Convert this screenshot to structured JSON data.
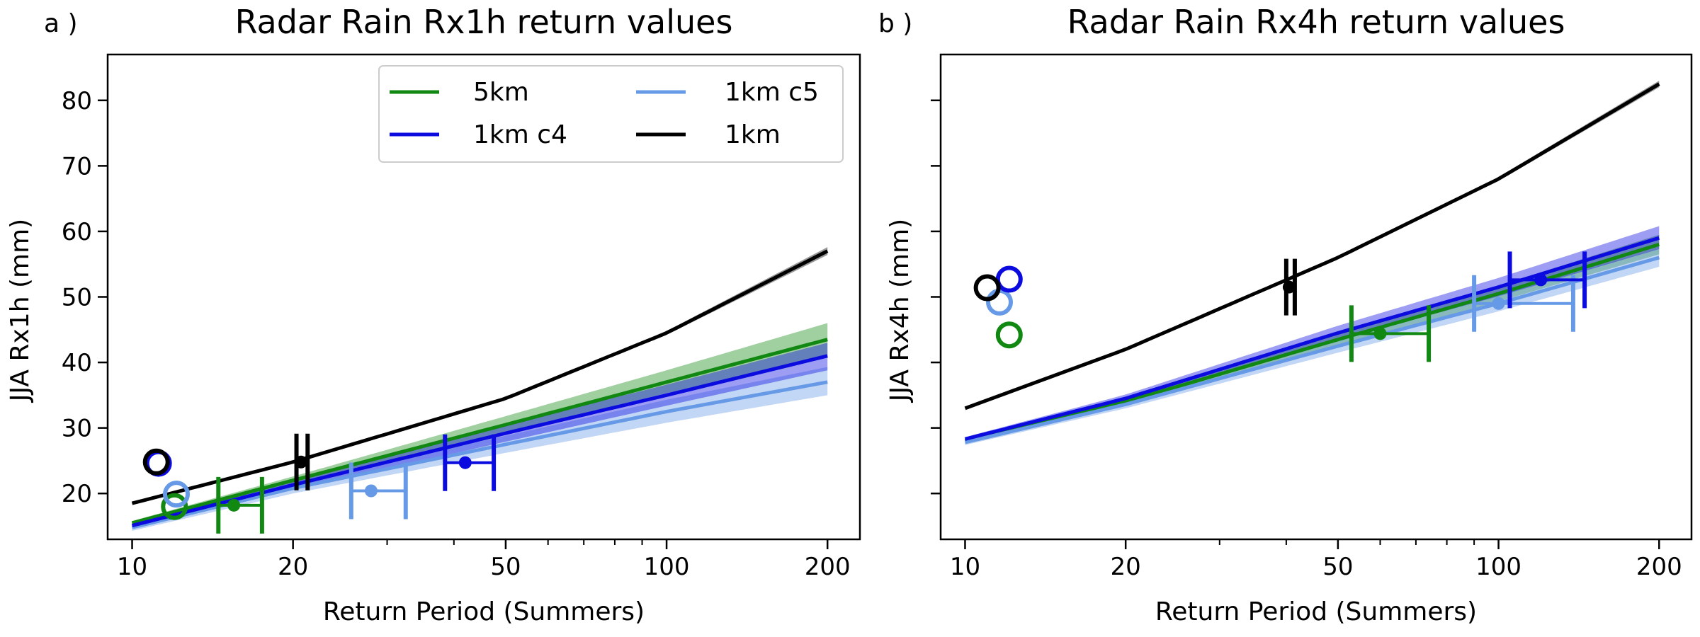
{
  "chart_data": [
    {
      "type": "line",
      "panel_label": "a )",
      "title": "Radar Rain Rx1h  return values",
      "xlabel": "Return Period (Summers)",
      "ylabel": "JJA Rx1h (mm)",
      "x_scale": "log",
      "xlim": [
        9.0,
        230
      ],
      "ylim": [
        13,
        87
      ],
      "x_ticks": [
        10,
        20,
        50,
        100,
        200
      ],
      "x_tick_labels": [
        "10",
        "20",
        "50",
        "100",
        "200"
      ],
      "y_ticks": [
        20,
        30,
        40,
        50,
        60,
        70,
        80
      ],
      "y_tick_labels": [
        "20",
        "30",
        "40",
        "50",
        "60",
        "70",
        "80"
      ],
      "grid": false,
      "legend": {
        "placement": "top-right",
        "entries": [
          {
            "label": "5km",
            "color": "#118811"
          },
          {
            "label": "1km c5",
            "color": "#6699e6"
          },
          {
            "label": "1km c4",
            "color": "#0b0be0"
          },
          {
            "label": "1km",
            "color": "#000000"
          }
        ]
      },
      "series": [
        {
          "name": "5km",
          "color": "#118811",
          "x": [
            10,
            20,
            50,
            100,
            200
          ],
          "y": [
            15.5,
            22.0,
            30.5,
            37.0,
            43.5
          ],
          "band_low": [
            15.2,
            21.4,
            29.3,
            35.3,
            41.0
          ],
          "band_high": [
            15.8,
            22.6,
            31.8,
            38.8,
            46.0
          ],
          "observed": {
            "x": 12.0,
            "y": 18.0
          },
          "return_point": {
            "x": 15.5,
            "y": 18.2,
            "xerr": [
              14.5,
              17.5
            ]
          }
        },
        {
          "name": "1km c5",
          "color": "#6699e6",
          "x": [
            10,
            20,
            50,
            100,
            200
          ],
          "y": [
            14.8,
            20.8,
            27.5,
            32.5,
            37.0
          ],
          "band_low": [
            14.3,
            20.0,
            26.2,
            30.8,
            35.0
          ],
          "band_high": [
            15.3,
            21.6,
            28.8,
            34.3,
            39.3
          ],
          "observed": {
            "x": 12.1,
            "y": 19.9
          },
          "return_point": {
            "x": 28.0,
            "y": 20.4,
            "xerr": [
              25.7,
              32.5
            ]
          }
        },
        {
          "name": "1km c4",
          "color": "#0b0be0",
          "x": [
            10,
            20,
            50,
            100,
            200
          ],
          "y": [
            15.1,
            21.3,
            29.2,
            35.0,
            41.0
          ],
          "band_low": [
            14.7,
            20.6,
            27.9,
            33.4,
            38.8
          ],
          "band_high": [
            15.5,
            22.0,
            30.5,
            36.6,
            43.0
          ],
          "observed": {
            "x": 11.2,
            "y": 24.6
          },
          "return_point": {
            "x": 42.0,
            "y": 24.7,
            "xerr": [
              38.5,
              47.5
            ]
          }
        },
        {
          "name": "1km",
          "color": "#000000",
          "x": [
            10,
            20,
            50,
            100,
            200
          ],
          "y": [
            18.5,
            24.8,
            34.5,
            44.5,
            57.0
          ],
          "band_low": [
            18.4,
            24.7,
            34.3,
            44.2,
            56.4
          ],
          "band_high": [
            18.6,
            24.9,
            34.7,
            44.8,
            57.6
          ],
          "observed": {
            "x": 11.1,
            "y": 24.8
          },
          "return_point": {
            "x": 20.7,
            "y": 24.8,
            "xerr": [
              20.3,
              21.3
            ]
          }
        }
      ]
    },
    {
      "type": "line",
      "panel_label": "b )",
      "title": "Radar Rain Rx4h  return values",
      "xlabel": "Return Period (Summers)",
      "ylabel": "JJA Rx4h (mm)",
      "x_scale": "log",
      "xlim": [
        9.0,
        230
      ],
      "ylim": [
        13,
        87
      ],
      "x_ticks": [
        10,
        20,
        50,
        100,
        200
      ],
      "x_tick_labels": [
        "10",
        "20",
        "50",
        "100",
        "200"
      ],
      "y_ticks": [
        20,
        30,
        40,
        50,
        60,
        70,
        80
      ],
      "y_tick_labels": [],
      "grid": false,
      "series": [
        {
          "name": "5km",
          "color": "#118811",
          "x": [
            10,
            20,
            50,
            100,
            200
          ],
          "y": [
            28.0,
            34.0,
            43.5,
            50.5,
            58.0
          ],
          "band_low": [
            27.7,
            33.5,
            42.6,
            49.3,
            56.5
          ],
          "band_high": [
            28.3,
            34.5,
            44.4,
            51.7,
            59.5
          ],
          "observed": {
            "x": 12.1,
            "y": 44.2
          },
          "return_point": {
            "x": 60.0,
            "y": 44.4,
            "xerr": [
              53.0,
              74.0
            ]
          }
        },
        {
          "name": "1km c5",
          "color": "#6699e6",
          "x": [
            10,
            20,
            50,
            100,
            200
          ],
          "y": [
            27.8,
            33.6,
            42.5,
            49.0,
            56.0
          ],
          "band_low": [
            27.4,
            33.0,
            41.5,
            47.8,
            54.6
          ],
          "band_high": [
            28.2,
            34.2,
            43.5,
            50.3,
            57.4
          ],
          "observed": {
            "x": 11.6,
            "y": 49.2
          },
          "return_point": {
            "x": 100.0,
            "y": 49.0,
            "xerr": [
              90.0,
              138.0
            ]
          }
        },
        {
          "name": "1km c4",
          "color": "#0b0be0",
          "x": [
            10,
            20,
            50,
            100,
            200
          ],
          "y": [
            28.3,
            34.5,
            44.5,
            51.5,
            59.0
          ],
          "band_low": [
            28.0,
            33.9,
            43.4,
            50.1,
            57.3
          ],
          "band_high": [
            28.6,
            35.1,
            45.6,
            52.9,
            60.8
          ],
          "observed": {
            "x": 12.1,
            "y": 52.7
          },
          "return_point": {
            "x": 120.0,
            "y": 52.6,
            "xerr": [
              105.0,
              145.0
            ]
          }
        },
        {
          "name": "1km",
          "color": "#000000",
          "x": [
            10,
            20,
            50,
            100,
            200
          ],
          "y": [
            33.0,
            42.0,
            56.0,
            68.0,
            82.5
          ],
          "band_low": [
            32.9,
            41.9,
            55.8,
            67.7,
            82.0
          ],
          "band_high": [
            33.1,
            42.1,
            56.2,
            68.3,
            83.0
          ],
          "observed": {
            "x": 11.0,
            "y": 51.4
          },
          "return_point": {
            "x": 40.5,
            "y": 51.5,
            "xerr": [
              40.0,
              41.5
            ]
          }
        }
      ]
    }
  ]
}
